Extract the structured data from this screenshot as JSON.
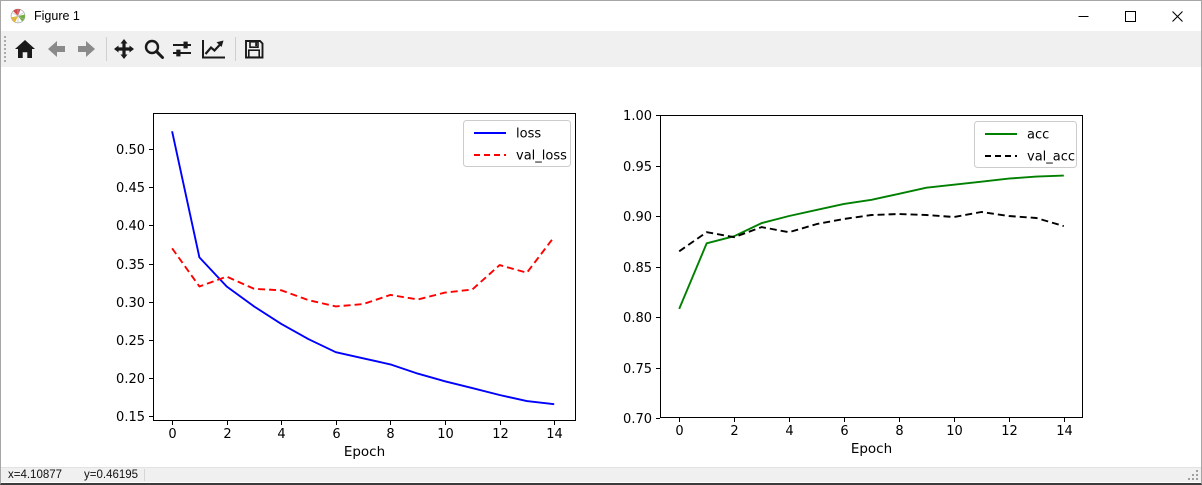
{
  "window": {
    "title": "Figure 1",
    "app_icon": "matplotlib-logo",
    "controls": [
      {
        "id": "minimize",
        "icon": "minimize-icon"
      },
      {
        "id": "maximize",
        "icon": "maximize-icon"
      },
      {
        "id": "close",
        "icon": "close-icon"
      }
    ]
  },
  "toolbar": {
    "buttons": [
      {
        "id": "home",
        "icon": "home-icon",
        "disabled": false
      },
      {
        "id": "back",
        "icon": "back-arrow-icon",
        "disabled": true
      },
      {
        "id": "forward",
        "icon": "forward-arrow-icon",
        "disabled": true
      },
      {
        "id": "pan",
        "icon": "pan-arrows-icon",
        "disabled": false
      },
      {
        "id": "zoom",
        "icon": "zoom-magnifier-icon",
        "disabled": false
      },
      {
        "id": "configure-subplots",
        "icon": "sliders-icon",
        "disabled": false
      },
      {
        "id": "edit-parameters",
        "icon": "curve-options-icon",
        "disabled": false
      },
      {
        "id": "save",
        "icon": "save-floppy-icon",
        "disabled": false
      }
    ]
  },
  "statusbar": {
    "cursor_x": "x=4.10877",
    "cursor_y": "y=0.46195"
  },
  "chart_data": [
    {
      "id": "loss-chart",
      "type": "line",
      "title": "",
      "xlabel": "Epoch",
      "ylabel": "",
      "x": [
        0,
        1,
        2,
        3,
        4,
        5,
        6,
        7,
        8,
        9,
        10,
        11,
        12,
        13,
        14
      ],
      "series": [
        {
          "name": "loss",
          "color": "#0000ff",
          "linestyle": "solid",
          "values": [
            0.523,
            0.358,
            0.32,
            0.294,
            0.271,
            0.251,
            0.234,
            0.226,
            0.218,
            0.206,
            0.196,
            0.187,
            0.178,
            0.17,
            0.166
          ]
        },
        {
          "name": "val_loss",
          "color": "#ff0000",
          "linestyle": "dashed",
          "values": [
            0.37,
            0.32,
            0.333,
            0.317,
            0.315,
            0.302,
            0.294,
            0.297,
            0.309,
            0.303,
            0.312,
            0.316,
            0.348,
            0.338,
            0.385
          ]
        }
      ],
      "xticks": [
        0,
        2,
        4,
        6,
        8,
        10,
        12,
        14
      ],
      "yticks": [
        0.15,
        0.2,
        0.25,
        0.3,
        0.35,
        0.4,
        0.45,
        0.5
      ],
      "ytick_labels": [
        "0.15",
        "0.20",
        "0.25",
        "0.30",
        "0.35",
        "0.40",
        "0.45",
        "0.50"
      ],
      "xlim": [
        -0.7,
        14.8
      ],
      "ylim": [
        0.144,
        0.547
      ],
      "grid": false,
      "legend_position": "upper right"
    },
    {
      "id": "accuracy-chart",
      "type": "line",
      "title": "",
      "xlabel": "Epoch",
      "ylabel": "",
      "x": [
        0,
        1,
        2,
        3,
        4,
        5,
        6,
        7,
        8,
        9,
        10,
        11,
        12,
        13,
        14
      ],
      "series": [
        {
          "name": "acc",
          "color": "#008000",
          "linestyle": "solid",
          "values": [
            0.808,
            0.873,
            0.88,
            0.893,
            0.9,
            0.906,
            0.912,
            0.916,
            0.922,
            0.928,
            0.931,
            0.934,
            0.937,
            0.939,
            0.94
          ]
        },
        {
          "name": "val_acc",
          "color": "#000000",
          "linestyle": "dashed",
          "values": [
            0.865,
            0.884,
            0.879,
            0.889,
            0.884,
            0.892,
            0.897,
            0.901,
            0.902,
            0.901,
            0.899,
            0.904,
            0.9,
            0.898,
            0.89
          ]
        }
      ],
      "xticks": [
        0,
        2,
        4,
        6,
        8,
        10,
        12,
        14
      ],
      "yticks": [
        0.7,
        0.75,
        0.8,
        0.85,
        0.9,
        0.95,
        1.0
      ],
      "ytick_labels": [
        "0.70",
        "0.75",
        "0.80",
        "0.85",
        "0.90",
        "0.95",
        "1.00"
      ],
      "xlim": [
        -0.7,
        14.7
      ],
      "ylim": [
        0.7,
        1.0
      ],
      "grid": false,
      "legend_position": "upper right"
    }
  ]
}
